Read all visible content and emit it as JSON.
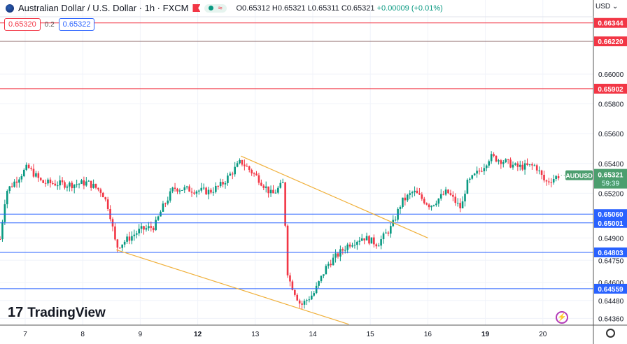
{
  "header": {
    "title": "Australian Dollar / U.S. Dollar · 1h · FXCM",
    "open": "O0.65312",
    "high": "H0.65321",
    "low": "L0.65311",
    "close": "C0.65321",
    "change": "+0.00009 (+0.01%)",
    "bid": "0.65320",
    "spread": "0.2",
    "ask": "0.65322",
    "currency": "USD",
    "market_status_icon": "market-open-icon"
  },
  "branding": {
    "logo": "TradingView"
  },
  "colors": {
    "up": "#089981",
    "down": "#f23645",
    "resistance": "#f23645",
    "support": "#2962ff",
    "trendline": "#f0b03a",
    "last": "#4c9e6e"
  },
  "chart_data": {
    "type": "candlestick",
    "symbol": "AUDUSD",
    "interval": "1h",
    "last_price": "0.65321",
    "countdown": "59:39",
    "ylim": [
      0.6432,
      0.665
    ],
    "y_ticks": [
      "0.66000",
      "0.65800",
      "0.65600",
      "0.65400",
      "0.65200",
      "0.64900",
      "0.64750",
      "0.64600",
      "0.64480",
      "0.64360"
    ],
    "x_ticks": [
      "7",
      "8",
      "9",
      "12",
      "13",
      "14",
      "15",
      "16",
      "19",
      "20"
    ],
    "x_days": [
      "6",
      "7",
      "8",
      "9",
      "12",
      "13",
      "14",
      "15",
      "16",
      "19",
      "20"
    ],
    "price_path": [
      {
        "d": "6",
        "h": 13.5,
        "p": 0.64892
      },
      {
        "d": "6",
        "h": 16,
        "p": 0.65211
      },
      {
        "d": "7",
        "h": 1,
        "p": 0.65376
      },
      {
        "d": "7",
        "h": 7,
        "p": 0.65272
      },
      {
        "d": "7",
        "h": 19,
        "p": 0.65258
      },
      {
        "d": "8",
        "h": 2,
        "p": 0.65272
      },
      {
        "d": "8",
        "h": 8,
        "p": 0.65211
      },
      {
        "d": "8",
        "h": 11,
        "p": 0.65094
      },
      {
        "d": "8",
        "h": 14,
        "p": 0.64836
      },
      {
        "d": "8",
        "h": 18,
        "p": 0.64883
      },
      {
        "d": "9",
        "h": 0,
        "p": 0.64953
      },
      {
        "d": "9",
        "h": 6,
        "p": 0.64977
      },
      {
        "d": "9",
        "h": 9,
        "p": 0.65094
      },
      {
        "d": "9",
        "h": 14,
        "p": 0.65235
      },
      {
        "d": "12",
        "h": 5,
        "p": 0.65211
      },
      {
        "d": "12",
        "h": 10,
        "p": 0.65258
      },
      {
        "d": "12",
        "h": 18,
        "p": 0.65413
      },
      {
        "d": "13",
        "h": 1,
        "p": 0.65305
      },
      {
        "d": "13",
        "h": 7,
        "p": 0.65188
      },
      {
        "d": "13",
        "h": 12,
        "p": 0.65272
      },
      {
        "d": "13",
        "h": 13,
        "p": 0.64718
      },
      {
        "d": "13",
        "h": 14,
        "p": 0.64624
      },
      {
        "d": "13",
        "h": 19,
        "p": 0.64446
      },
      {
        "d": "14",
        "h": 0.5,
        "p": 0.6453
      },
      {
        "d": "14",
        "h": 6,
        "p": 0.64718
      },
      {
        "d": "14",
        "h": 15,
        "p": 0.64859
      },
      {
        "d": "14",
        "h": 21,
        "p": 0.64906
      },
      {
        "d": "15",
        "h": 3,
        "p": 0.64859
      },
      {
        "d": "15",
        "h": 9,
        "p": 0.64977
      },
      {
        "d": "15",
        "h": 13,
        "p": 0.65141
      },
      {
        "d": "15",
        "h": 18,
        "p": 0.65211
      },
      {
        "d": "16",
        "h": 1,
        "p": 0.65117
      },
      {
        "d": "16",
        "h": 8,
        "p": 0.65211
      },
      {
        "d": "16",
        "h": 14,
        "p": 0.65094
      },
      {
        "d": "16",
        "h": 16,
        "p": 0.65258
      },
      {
        "d": "16",
        "h": 23,
        "p": 0.65376
      },
      {
        "d": "19",
        "h": 2,
        "p": 0.65446
      },
      {
        "d": "19",
        "h": 8,
        "p": 0.65413
      },
      {
        "d": "19",
        "h": 13,
        "p": 0.65376
      },
      {
        "d": "19",
        "h": 21,
        "p": 0.65385
      },
      {
        "d": "20",
        "h": 1,
        "p": 0.65272
      },
      {
        "d": "20",
        "h": 7,
        "p": 0.65321
      }
    ],
    "horizontal_levels": [
      {
        "price": "0.66344",
        "kind": "resistance"
      },
      {
        "price": "0.66220",
        "kind": "resistance"
      },
      {
        "price": "0.65902",
        "kind": "resistance"
      },
      {
        "price": "0.65060",
        "kind": "support"
      },
      {
        "price": "0.65001",
        "kind": "support"
      },
      {
        "price": "0.64803",
        "kind": "support"
      },
      {
        "price": "0.64559",
        "kind": "support"
      }
    ],
    "trendlines": [
      {
        "from": {
          "d": "12",
          "h": 18,
          "p": 0.6545
        },
        "to": {
          "d": "16",
          "h": 0,
          "p": 0.649
        }
      },
      {
        "from": {
          "d": "8",
          "h": 14,
          "p": 0.6482
        },
        "to": {
          "d": "14",
          "h": 15,
          "p": 0.6432
        }
      }
    ]
  }
}
